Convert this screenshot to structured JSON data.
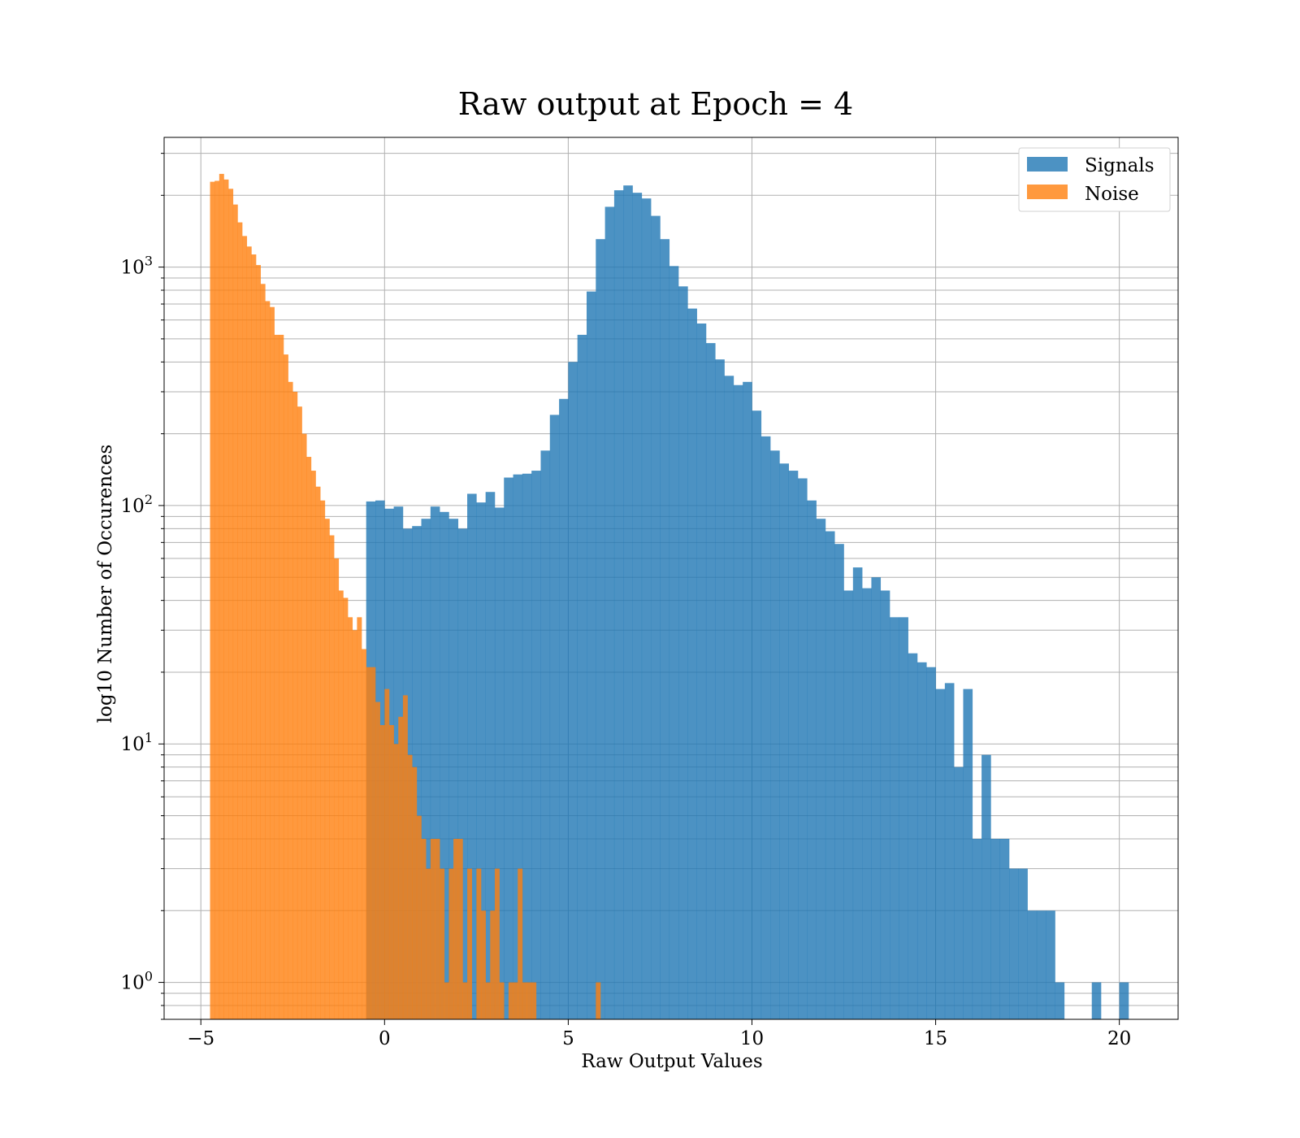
{
  "chart_data": {
    "type": "histogram",
    "title": "Raw output at Epoch = 4",
    "xlabel": "Raw Output Values",
    "ylabel": "log10 Number of Occurences",
    "yscale": "log",
    "xlim": [
      -6.0,
      21.6
    ],
    "ylim": [
      0.7,
      3500
    ],
    "grid": true,
    "legend_position": "top-right",
    "x_ticks": [
      {
        "value": -5,
        "label": "−5"
      },
      {
        "value": 0,
        "label": "0"
      },
      {
        "value": 5,
        "label": "5"
      },
      {
        "value": 10,
        "label": "10"
      },
      {
        "value": 15,
        "label": "15"
      },
      {
        "value": 20,
        "label": "20"
      }
    ],
    "y_ticks": [
      {
        "value": 1,
        "base": "10",
        "exp": "0"
      },
      {
        "value": 10,
        "base": "10",
        "exp": "1"
      },
      {
        "value": 100,
        "base": "10",
        "exp": "2"
      },
      {
        "value": 1000,
        "base": "10",
        "exp": "3"
      }
    ],
    "series": [
      {
        "name": "Signals",
        "color": "#1f77b4",
        "bin_start": -0.5,
        "bin_width": 0.25,
        "counts": [
          104,
          105,
          97,
          99,
          80,
          82,
          88,
          99,
          94,
          88,
          80,
          112,
          103,
          114,
          98,
          131,
          135,
          136,
          140,
          170,
          240,
          280,
          400,
          520,
          790,
          1310,
          1790,
          2100,
          2200,
          2050,
          1940,
          1640,
          1310,
          1010,
          830,
          670,
          580,
          480,
          410,
          350,
          320,
          330,
          250,
          195,
          170,
          150,
          140,
          130,
          105,
          88,
          78,
          69,
          44,
          55,
          45,
          50,
          44,
          34,
          34,
          24,
          22,
          21,
          17,
          18,
          8,
          17,
          4,
          9,
          4,
          4,
          3,
          3,
          2,
          2,
          2,
          1,
          0,
          0,
          0,
          1,
          0,
          0,
          1
        ],
        "opacity": 0.8
      },
      {
        "name": "Noise",
        "color": "#ff7f0e",
        "bin_start": -4.75,
        "bin_width": 0.125,
        "counts": [
          2280,
          2300,
          2460,
          2330,
          2130,
          1830,
          1540,
          1350,
          1220,
          1130,
          1020,
          850,
          720,
          680,
          520,
          520,
          430,
          330,
          300,
          260,
          200,
          160,
          140,
          120,
          105,
          88,
          75,
          60,
          44,
          41,
          34,
          30,
          34,
          25,
          21,
          21,
          15,
          12,
          17,
          12,
          10,
          13,
          16,
          9,
          8,
          5,
          4,
          3,
          4,
          4,
          3,
          1,
          3,
          4,
          4,
          1,
          3,
          0,
          3,
          2,
          1,
          2,
          3,
          1,
          0,
          1,
          1,
          3,
          1,
          1,
          1,
          0,
          0,
          0,
          0,
          0,
          0,
          0,
          0,
          0,
          0,
          0,
          0,
          0,
          1
        ],
        "opacity": 0.8
      }
    ]
  }
}
